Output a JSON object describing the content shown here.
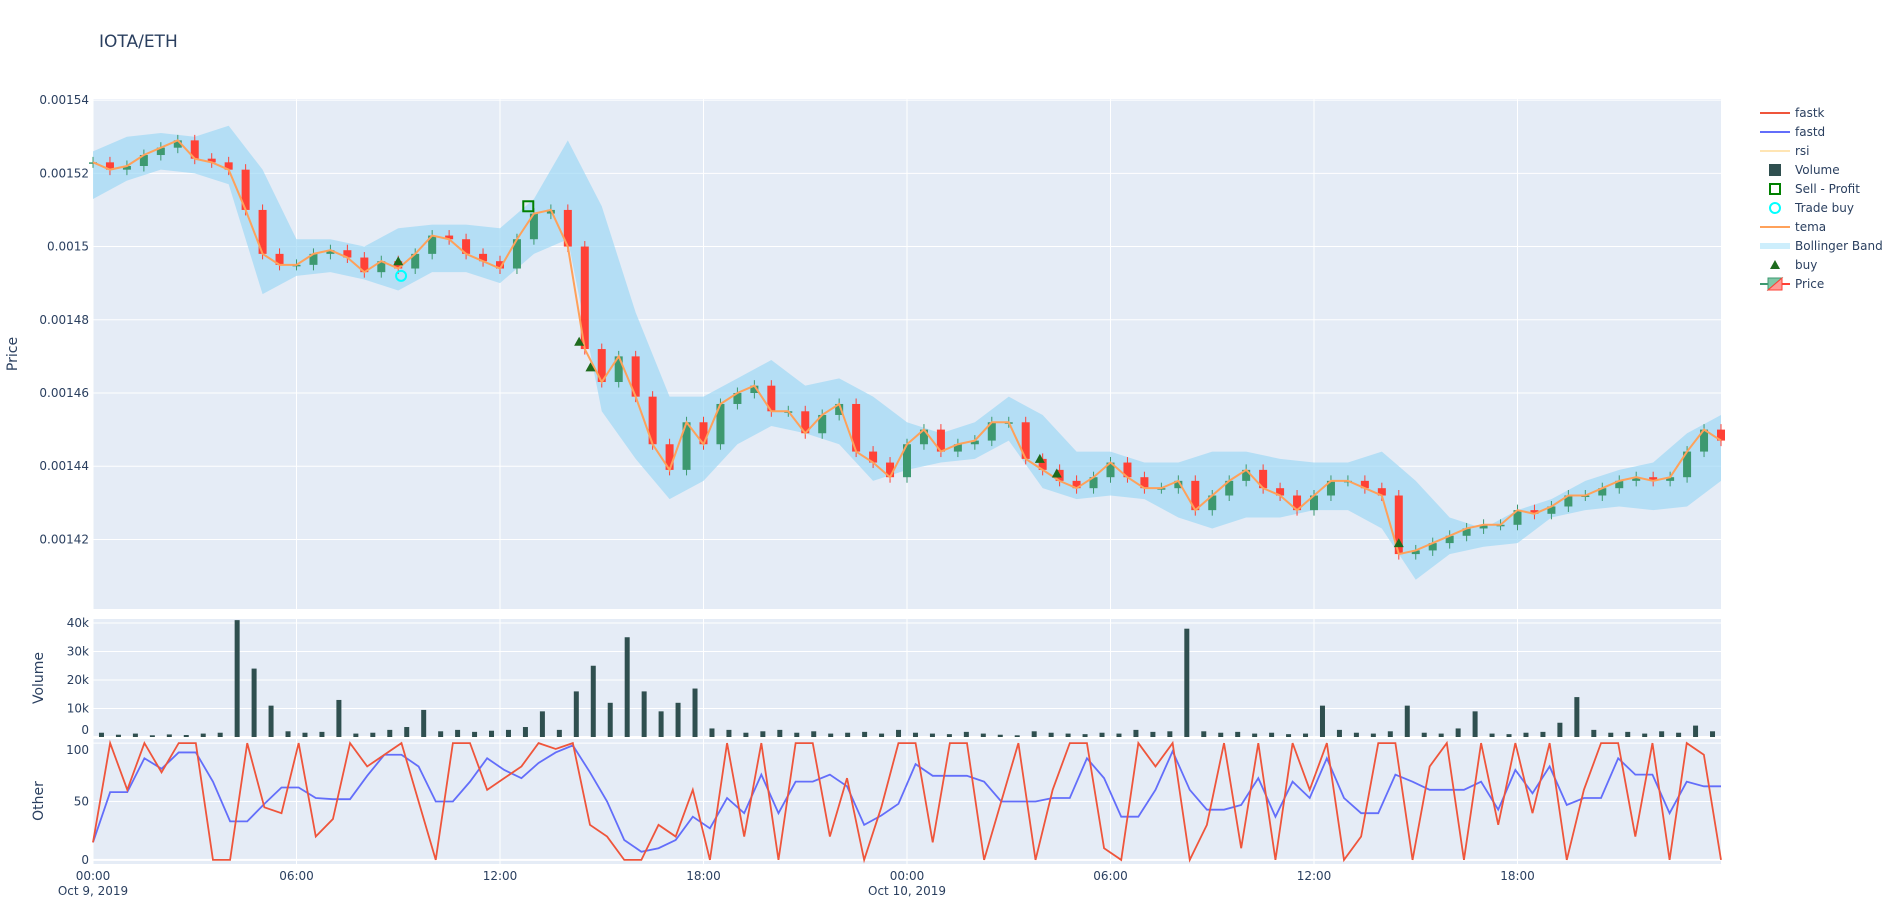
{
  "title": "IOTA/ETH",
  "colors": {
    "background": "#E5ECF6",
    "increasing": "#3D9970",
    "decreasing": "#FF4136",
    "tema": "#FFA15A",
    "bollinger": "#9fd8f5",
    "volume": "#2F4F4F",
    "fastk": "#EF553B",
    "fastd": "#636EFA",
    "rsi": "#FFE5B4",
    "buy": "#1e6b1e",
    "sell_profit": "#008000",
    "trade_buy": "#00FFFF"
  },
  "legend": [
    {
      "name": "fastk",
      "symbol": "line-fastk"
    },
    {
      "name": "fastd",
      "symbol": "line-fastd"
    },
    {
      "name": "rsi",
      "symbol": "line-rsi",
      "hidden": true
    },
    {
      "name": "Volume",
      "symbol": "square-volume"
    },
    {
      "name": "Sell - Profit",
      "symbol": "square-open-green"
    },
    {
      "name": "Trade buy",
      "symbol": "circle-open-cyan"
    },
    {
      "name": "tema",
      "symbol": "line-tema"
    },
    {
      "name": "Bollinger Band",
      "symbol": "band"
    },
    {
      "name": "buy",
      "symbol": "triangle-up"
    },
    {
      "name": "Price",
      "symbol": "candlestick"
    }
  ],
  "chart_data": {
    "type": "candlestick",
    "x_range": [
      "2019-10-09 00:00",
      "2019-10-11 00:00"
    ],
    "x_ticks": [
      {
        "time": "00:00",
        "date": "Oct 9, 2019"
      },
      {
        "time": "06:00",
        "date": ""
      },
      {
        "time": "12:00",
        "date": ""
      },
      {
        "time": "18:00",
        "date": ""
      },
      {
        "time": "00:00",
        "date": "Oct 10, 2019"
      },
      {
        "time": "06:00",
        "date": ""
      },
      {
        "time": "12:00",
        "date": ""
      },
      {
        "time": "18:00",
        "date": ""
      }
    ],
    "grid": true,
    "legend_placement": "right",
    "panels": {
      "price": {
        "ylabel": "Price",
        "ylim": [
          0.001401,
          0.0015403
        ],
        "yticks": [
          0.00142,
          0.00144,
          0.00146,
          0.00148,
          0.0015,
          0.00152,
          0.00154
        ],
        "ytick_labels": [
          "0.00142",
          "0.00144",
          "0.00146",
          "0.00148",
          "0.0015",
          "0.00152",
          "0.00154"
        ],
        "close_start": "2019-10-09 00:00",
        "close_freq": "30min",
        "close": [
          0.001523,
          0.001521,
          0.001522,
          0.001525,
          0.001527,
          0.001529,
          0.001524,
          0.001523,
          0.001521,
          0.00151,
          0.001498,
          0.001495,
          0.001495,
          0.001498,
          0.001499,
          0.001497,
          0.001493,
          0.001496,
          0.001494,
          0.001498,
          0.001503,
          0.001502,
          0.001498,
          0.001496,
          0.001494,
          0.001502,
          0.001509,
          0.00151,
          0.0015,
          0.001472,
          0.001463,
          0.00147,
          0.001459,
          0.001446,
          0.001439,
          0.001452,
          0.001446,
          0.001457,
          0.00146,
          0.001462,
          0.001455,
          0.001455,
          0.001449,
          0.001454,
          0.001457,
          0.001444,
          0.001441,
          0.001437,
          0.001446,
          0.00145,
          0.001444,
          0.001446,
          0.001447,
          0.001452,
          0.001452,
          0.001442,
          0.001439,
          0.001436,
          0.001434,
          0.001437,
          0.001441,
          0.001437,
          0.001434,
          0.001434,
          0.001436,
          0.001428,
          0.001432,
          0.001436,
          0.001439,
          0.001434,
          0.001432,
          0.001428,
          0.001432,
          0.001436,
          0.001436,
          0.001434,
          0.001432,
          0.001416,
          0.001417,
          0.001419,
          0.001421,
          0.001423,
          0.001424,
          0.001424,
          0.001428,
          0.001427,
          0.001429,
          0.001432,
          0.001432,
          0.001434,
          0.001436,
          0.001437,
          0.001436,
          0.001437,
          0.001444,
          0.00145,
          0.001447
        ],
        "bollinger_freq": "60min",
        "bollinger_upper": [
          0.001526,
          0.00153,
          0.001531,
          0.00153,
          0.001533,
          0.001521,
          0.001502,
          0.001502,
          0.0015,
          0.001505,
          0.001506,
          0.001506,
          0.001505,
          0.001513,
          0.001529,
          0.001511,
          0.001482,
          0.001459,
          0.001459,
          0.001464,
          0.001469,
          0.001462,
          0.001464,
          0.001459,
          0.001452,
          0.001449,
          0.001452,
          0.001459,
          0.001454,
          0.001444,
          0.001444,
          0.001441,
          0.001441,
          0.001444,
          0.001444,
          0.001442,
          0.001441,
          0.001441,
          0.001444,
          0.001436,
          0.001426,
          0.001423,
          0.001428,
          0.001431,
          0.001436,
          0.001439,
          0.001441,
          0.001449,
          0.001454
        ],
        "bollinger_lower": [
          0.001513,
          0.001518,
          0.001521,
          0.00152,
          0.001517,
          0.001487,
          0.001492,
          0.001493,
          0.001491,
          0.001488,
          0.001493,
          0.001493,
          0.00149,
          0.001498,
          0.001502,
          0.001455,
          0.001442,
          0.001431,
          0.001436,
          0.001446,
          0.001451,
          0.001449,
          0.001446,
          0.001436,
          0.001439,
          0.001441,
          0.001442,
          0.001447,
          0.001434,
          0.001431,
          0.001432,
          0.001431,
          0.001426,
          0.001423,
          0.001426,
          0.001426,
          0.001428,
          0.001428,
          0.001423,
          0.001409,
          0.001416,
          0.001418,
          0.001419,
          0.001426,
          0.001428,
          0.001429,
          0.001428,
          0.001429,
          0.001436
        ],
        "buy": [
          {
            "x": "2019-10-09 09:00",
            "y": 0.001496
          },
          {
            "x": "2019-10-09 14:20",
            "y": 0.001474
          },
          {
            "x": "2019-10-09 14:40",
            "y": 0.001467
          },
          {
            "x": "2019-10-10 03:55",
            "y": 0.001442
          },
          {
            "x": "2019-10-10 04:25",
            "y": 0.001438
          },
          {
            "x": "2019-10-10 14:30",
            "y": 0.001419
          }
        ],
        "trade_buy": [
          {
            "x": "2019-10-09 09:05",
            "y": 0.001492
          }
        ],
        "sell_profit": [
          {
            "x": "2019-10-09 12:50",
            "y": 0.001511
          }
        ]
      },
      "volume": {
        "ylabel": "Volume",
        "ylim": [
          0,
          41400
        ],
        "yticks": [
          0,
          10000,
          20000,
          30000,
          40000
        ],
        "ytick_labels": [
          "0",
          "10k",
          "20k",
          "30k",
          "40k"
        ],
        "freq": "30min",
        "values": [
          1500,
          800,
          1200,
          600,
          900,
          700,
          1200,
          1500,
          41000,
          24000,
          11000,
          2000,
          1500,
          1800,
          13000,
          1200,
          1500,
          2500,
          3500,
          9500,
          2000,
          2500,
          1800,
          2200,
          2500,
          3500,
          9000,
          2500,
          16000,
          25000,
          12000,
          35000,
          16000,
          9000,
          12000,
          17000,
          3000,
          2500,
          1500,
          2000,
          2500,
          1500,
          2000,
          1200,
          1500,
          1800,
          1200,
          2500,
          1500,
          1200,
          1000,
          1800,
          1200,
          800,
          600,
          2000,
          1500,
          1200,
          1000,
          1500,
          1200,
          2500,
          1800,
          2000,
          38000,
          2000,
          1500,
          1800,
          1200,
          1500,
          1000,
          1200,
          11000,
          2500,
          1500,
          1200,
          2000,
          11000,
          1500,
          1200,
          3000,
          9000,
          1200,
          1000,
          1500,
          1800,
          5000,
          14000,
          2500,
          1500,
          1800,
          1200,
          2000,
          1500,
          4000,
          2000
        ]
      },
      "other": {
        "ylabel": "Other",
        "ylim": [
          -3.5,
          103.5
        ],
        "yticks": [
          0,
          50,
          100
        ],
        "ytick_labels": [
          "0",
          "50",
          "100"
        ],
        "freq": "30min",
        "fastk": [
          15,
          100,
          60,
          100,
          75,
          100,
          100,
          0,
          0,
          100,
          45,
          40,
          100,
          20,
          35,
          100,
          80,
          90,
          100,
          50,
          0,
          100,
          100,
          60,
          70,
          80,
          100,
          95,
          100,
          30,
          20,
          0,
          0,
          30,
          20,
          60,
          0,
          100,
          20,
          100,
          0,
          100,
          100,
          20,
          70,
          0,
          45,
          100,
          100,
          15,
          100,
          100,
          0,
          50,
          100,
          0,
          60,
          100,
          100,
          10,
          0,
          100,
          80,
          100,
          0,
          30,
          100,
          10,
          100,
          0,
          100,
          60,
          100,
          0,
          20,
          100,
          100,
          0,
          80,
          100,
          0,
          100,
          30,
          100,
          40,
          100,
          0,
          60,
          100,
          100,
          20,
          100,
          0,
          100,
          90,
          0
        ],
        "fastd": [
          15,
          58,
          58,
          87,
          78,
          92,
          92,
          67,
          33,
          33,
          48,
          62,
          62,
          53,
          52,
          52,
          72,
          90,
          90,
          80,
          50,
          50,
          67,
          87,
          77,
          70,
          83,
          92,
          98,
          75,
          50,
          17,
          7,
          10,
          17,
          37,
          27,
          53,
          40,
          73,
          40,
          67,
          67,
          73,
          63,
          30,
          38,
          48,
          82,
          72,
          72,
          72,
          67,
          50,
          50,
          50,
          53,
          53,
          87,
          70,
          37,
          37,
          60,
          93,
          60,
          43,
          43,
          47,
          70,
          37,
          67,
          53,
          87,
          53,
          40,
          40,
          73,
          67,
          60,
          60,
          60,
          67,
          43,
          77,
          57,
          80,
          47,
          53,
          53,
          87,
          73,
          73,
          40,
          67,
          63,
          63
        ]
      }
    }
  }
}
